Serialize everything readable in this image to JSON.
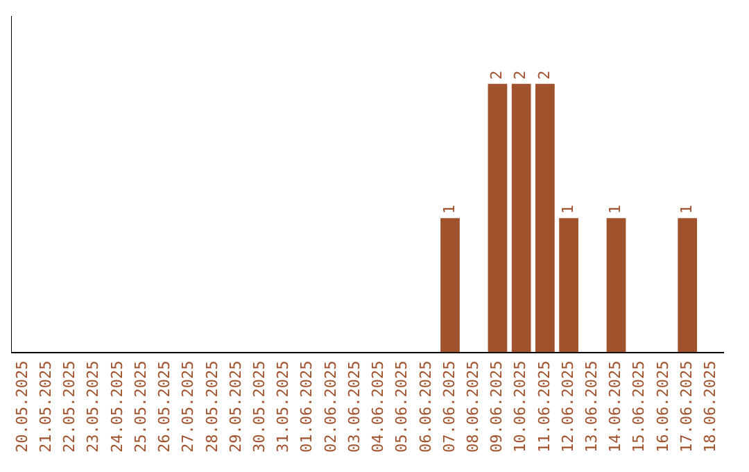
{
  "chart_data": {
    "type": "bar",
    "categories": [
      "20.05.2025",
      "21.05.2025",
      "22.05.2025",
      "23.05.2025",
      "24.05.2025",
      "25.05.2025",
      "26.05.2025",
      "27.05.2025",
      "28.05.2025",
      "29.05.2025",
      "30.05.2025",
      "31.05.2025",
      "01.06.2025",
      "02.06.2025",
      "03.06.2025",
      "04.06.2025",
      "05.06.2025",
      "06.06.2025",
      "07.06.2025",
      "08.06.2025",
      "09.06.2025",
      "10.06.2025",
      "11.06.2025",
      "12.06.2025",
      "13.06.2025",
      "14.06.2025",
      "15.06.2025",
      "16.06.2025",
      "17.06.2025",
      "18.06.2025"
    ],
    "values": [
      null,
      null,
      null,
      null,
      null,
      null,
      null,
      null,
      null,
      null,
      null,
      null,
      null,
      null,
      null,
      null,
      null,
      null,
      1,
      null,
      2,
      2,
      2,
      1,
      null,
      1,
      null,
      null,
      1,
      null
    ],
    "color": "#a0522d",
    "data_labels": true,
    "tick_labels": "x",
    "grid": false,
    "legend": false
  }
}
